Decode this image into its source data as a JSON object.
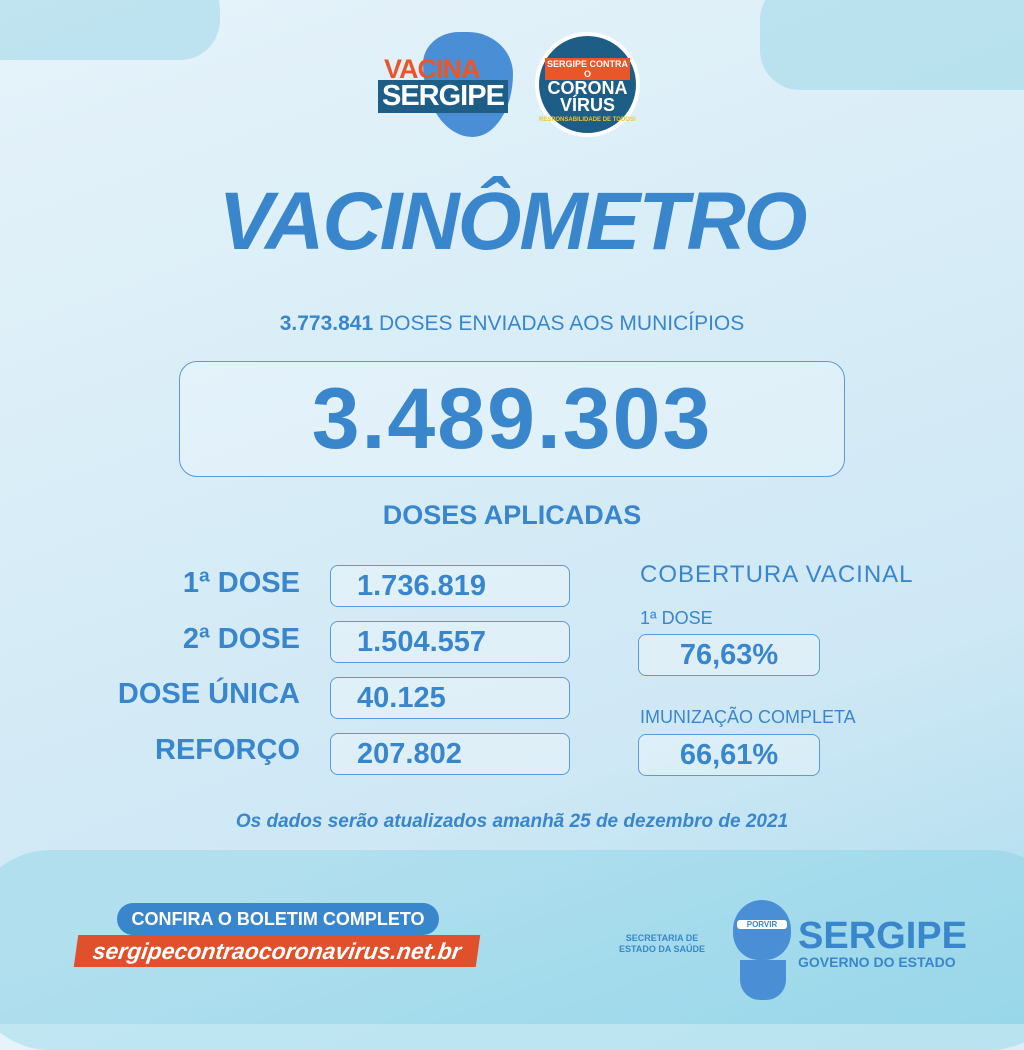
{
  "logos": {
    "vacina": "VACINA",
    "sergipe": "SERGIPE",
    "campaign_top": "SERGIPE CONTRA O",
    "campaign_corona": "CORONA",
    "campaign_virus": "VÍRUS",
    "campaign_tag": "RESPONSABILIDADE DE TODOS!"
  },
  "title": "VACINÔMETRO",
  "sent": {
    "value": "3.773.841",
    "label": "DOSES ENVIADAS AOS MUNICÍPIOS"
  },
  "total_applied": "3.489.303",
  "applied_label": "DOSES APLICADAS",
  "doses": [
    {
      "label": "1ª DOSE",
      "value": "1.736.819"
    },
    {
      "label": "2ª DOSE",
      "value": "1.504.557"
    },
    {
      "label": "DOSE ÚNICA",
      "value": "40.125"
    },
    {
      "label": "REFORÇO",
      "value": "207.802"
    }
  ],
  "coverage": {
    "title": "COBERTURA VACINAL",
    "first_label": "1ª DOSE",
    "first_value": "76,63%",
    "full_label": "IMUNIZAÇÃO COMPLETA",
    "full_value": "66,61%"
  },
  "note": "Os dados serão atualizados amanhã 25 de dezembro de 2021",
  "footer": {
    "button": "CONFIRA O BOLETIM COMPLETO",
    "url": "sergipecontraocoronavirus.net.br",
    "secretaria": "SECRETARIA DE ESTADO DA SAÚDE",
    "porvir": "PORVIR",
    "gov_name": "SERGIPE",
    "gov_sub": "GOVERNO DO ESTADO"
  },
  "colors": {
    "primary": "#3a86cc",
    "accent": "#e0502a",
    "dark": "#1e5d86"
  }
}
